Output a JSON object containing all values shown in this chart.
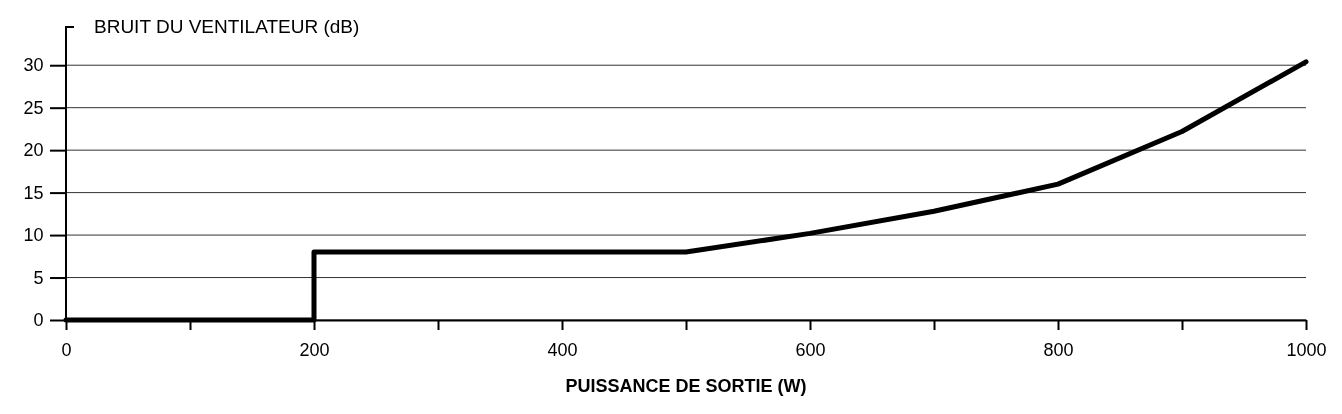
{
  "chart_data": {
    "type": "line",
    "ylabel": "BRUIT DU VENTILATEUR (dB)",
    "xlabel": "PUISSANCE DE SORTIE (W)",
    "x": [
      0,
      200,
      200,
      500,
      600,
      700,
      800,
      900,
      1000
    ],
    "series": [
      {
        "color": "#000000",
        "values": [
          0,
          0,
          8,
          8,
          10.2,
          12.8,
          16,
          22.2,
          30.4
        ]
      }
    ],
    "xlim": [
      0,
      1000
    ],
    "xticks": [
      0,
      {
        "value": 100,
        "label": null
      },
      200,
      {
        "value": 300,
        "label": null
      },
      400,
      {
        "value": 500,
        "label": null
      },
      600,
      {
        "value": 700,
        "label": null
      },
      800,
      {
        "value": 900,
        "label": null
      },
      1000
    ],
    "ylim": [
      0,
      34.5
    ],
    "yticks": [
      0,
      5,
      10,
      15,
      20,
      25,
      30
    ],
    "grid": "y",
    "marker": "none",
    "line_style": "solid"
  }
}
